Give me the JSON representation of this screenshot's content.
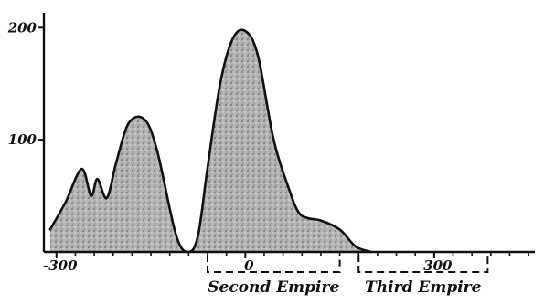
{
  "chart_data": {
    "type": "area",
    "title": "",
    "xlabel": "",
    "ylabel": "",
    "xlim": [
      -320,
      460
    ],
    "ylim": [
      0,
      210
    ],
    "x_ticks": [
      -300,
      0,
      300
    ],
    "x_tick_labels": [
      "-300",
      "0",
      "300"
    ],
    "y_ticks": [
      100,
      200
    ],
    "y_tick_labels": [
      "100",
      "200"
    ],
    "series": [
      {
        "x": [
          -310,
          -285,
          -260,
          -245,
          -235,
          -220,
          -205,
          -185,
          -160,
          -140,
          -110,
          -90,
          -75,
          -60,
          -40,
          -20,
          0,
          20,
          45,
          70,
          85,
          100,
          120,
          150,
          175,
          200
        ],
        "y": [
          20,
          45,
          74,
          50,
          65,
          48,
          80,
          115,
          118,
          90,
          15,
          0,
          15,
          75,
          150,
          190,
          197,
          175,
          100,
          55,
          35,
          30,
          28,
          20,
          5,
          0
        ]
      }
    ],
    "periods": [
      {
        "label": "Second Empire",
        "start": -60,
        "end": 150
      },
      {
        "label": "Third Empire",
        "start": 180,
        "end": 385
      }
    ],
    "fill_color": "#a8a8a8",
    "line_color": "#111111"
  }
}
